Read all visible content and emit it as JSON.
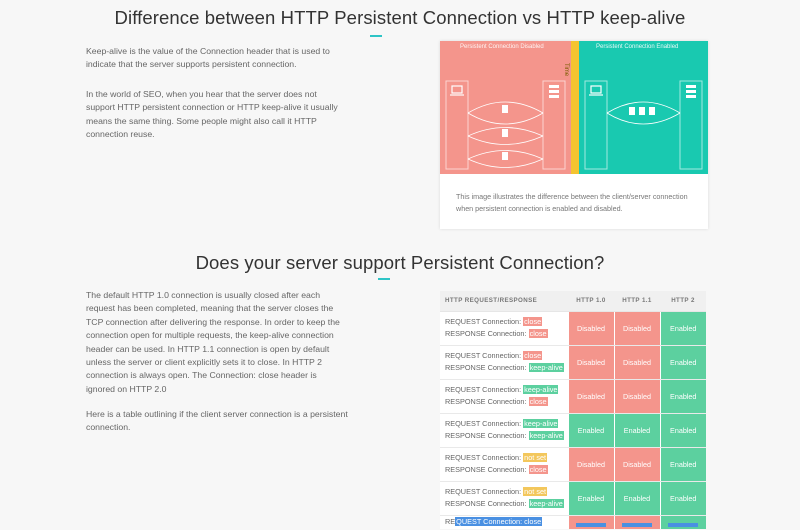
{
  "section1": {
    "title": "Difference between HTTP Persistent Connection vs HTTP keep-alive",
    "paragraph1": "Keep-alive is the value of the Connection header that is used to indicate that the server supports persistent connection.",
    "paragraph2": "In the world of SEO, when you hear that the server does not support HTTP persistent connection or HTTP keep-alive it usually means the same thing. Some people might also call it HTTP connection reuse.",
    "illustration": {
      "left_title": "Persistent Connection Disabled",
      "right_title": "Persistent Connection Enabled",
      "time_label": "Time",
      "caption": "This image illustrates the difference between the client/server connection when persistent connection is enabled and disabled."
    }
  },
  "section2": {
    "title": "Does your server support Persistent Connection?",
    "paragraph1": "The default HTTP 1.0 connection is usually closed after each request has been completed, meaning that the server closes the TCP connection after delivering the response. In order to keep the connection open for multiple requests, the keep-alive connection header can be used. In HTTP 1.1 connection is open by default unless the server or client explicitly sets it to close. In HTTP 2 connection is always open. The Connection: close header is ignored on HTTP 2.0",
    "paragraph2": "Here is a table outlining if the client server connection is a persistent connection."
  },
  "table": {
    "headers": [
      "HTTP REQUEST/RESPONSE",
      "HTTP 1.0",
      "HTTP 1.1",
      "HTTP 2"
    ],
    "request_label": "REQUEST Connection:",
    "response_label": "RESPONSE Connection:",
    "rows": [
      {
        "req": "close",
        "res": "close",
        "h10": "Disabled",
        "h11": "Disabled",
        "h2": "Enabled"
      },
      {
        "req": "close",
        "res": "keep-alive",
        "h10": "Disabled",
        "h11": "Disabled",
        "h2": "Enabled"
      },
      {
        "req": "keep-alive",
        "res": "close",
        "h10": "Disabled",
        "h11": "Disabled",
        "h2": "Enabled"
      },
      {
        "req": "keep-alive",
        "res": "keep-alive",
        "h10": "Enabled",
        "h11": "Enabled",
        "h2": "Enabled"
      },
      {
        "req": "not set",
        "res": "close",
        "h10": "Disabled",
        "h11": "Disabled",
        "h2": "Enabled"
      },
      {
        "req": "not set",
        "res": "keep-alive",
        "h10": "Enabled",
        "h11": "Enabled",
        "h2": "Enabled"
      }
    ],
    "partial_row": {
      "prefix": "RE",
      "highlight": "QUEST Connection: close"
    }
  },
  "colors": {
    "disabled": "#f4958c",
    "enabled": "#5cd09f",
    "accent": "#2ec4c6",
    "time_bar": "#f4c430",
    "green_panel": "#19c9b0"
  }
}
